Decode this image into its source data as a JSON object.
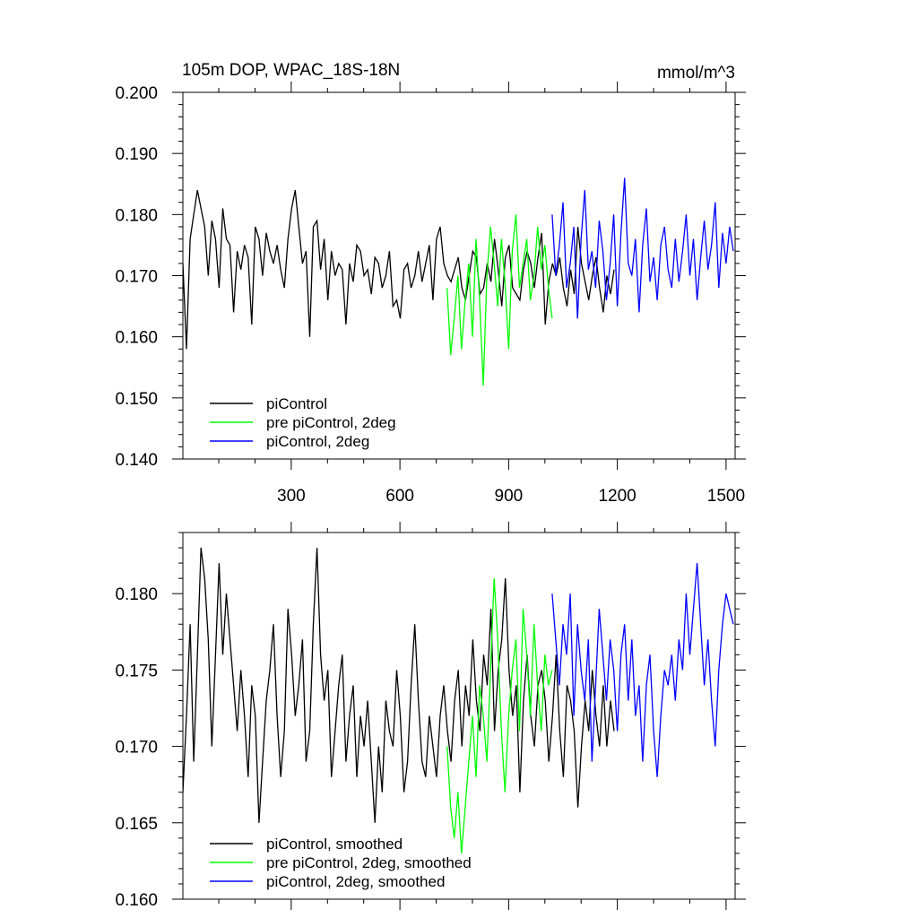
{
  "chart_data": [
    {
      "type": "line",
      "title": "105m DOP, WPAC_18S-18N",
      "units": "mmol/m^3",
      "xlim": [
        1,
        1525
      ],
      "ylim": [
        0.14,
        0.2
      ],
      "x_ticks": [
        300,
        600,
        900,
        1200,
        1500
      ],
      "x_tick_labels": [
        "300",
        "600",
        "900",
        "1200",
        "1500"
      ],
      "y_ticks": [
        0.14,
        0.15,
        0.16,
        0.17,
        0.18,
        0.19,
        0.2
      ],
      "y_tick_labels": [
        "0.140",
        "0.150",
        "0.160",
        "0.170",
        "0.180",
        "0.190",
        "0.200"
      ],
      "legend": {
        "placement": "bottom-left",
        "entries": [
          {
            "label": "piControl",
            "color": "#000000"
          },
          {
            "label": "pre piControl, 2deg",
            "color": "#00ff00"
          },
          {
            "label": "piControl, 2deg",
            "color": "#0000ff"
          }
        ]
      },
      "series": [
        {
          "color": "#000000",
          "x_start": 1,
          "step": 10,
          "values": [
            0.172,
            0.158,
            0.176,
            0.18,
            0.184,
            0.181,
            0.178,
            0.17,
            0.179,
            0.176,
            0.168,
            0.181,
            0.176,
            0.175,
            0.164,
            0.174,
            0.171,
            0.175,
            0.173,
            0.162,
            0.178,
            0.176,
            0.17,
            0.177,
            0.174,
            0.172,
            0.175,
            0.171,
            0.168,
            0.176,
            0.181,
            0.184,
            0.178,
            0.172,
            0.174,
            0.16,
            0.178,
            0.179,
            0.171,
            0.176,
            0.166,
            0.174,
            0.17,
            0.172,
            0.171,
            0.162,
            0.172,
            0.169,
            0.175,
            0.174,
            0.17,
            0.171,
            0.167,
            0.173,
            0.172,
            0.168,
            0.17,
            0.174,
            0.165,
            0.166,
            0.163,
            0.171,
            0.172,
            0.168,
            0.17,
            0.174,
            0.169,
            0.172,
            0.175,
            0.166,
            0.176,
            0.178,
            0.172,
            0.17,
            0.169,
            0.171,
            0.173,
            0.168,
            0.166,
            0.17,
            0.174,
            0.173,
            0.167,
            0.168,
            0.172,
            0.169,
            0.176,
            0.171,
            0.165,
            0.173,
            0.175,
            0.168,
            0.167,
            0.166,
            0.171,
            0.174,
            0.172,
            0.168,
            0.173,
            0.177,
            0.162,
            0.169,
            0.172,
            0.17,
            0.173,
            0.168,
            0.165,
            0.171,
            0.167,
            0.178,
            0.172,
            0.169,
            0.166,
            0.17,
            0.173,
            0.168,
            0.164,
            0.17,
            0.167,
            0.171
          ]
        },
        {
          "color": "#00ff00",
          "x_start": 730,
          "step": 10,
          "values": [
            0.168,
            0.157,
            0.163,
            0.17,
            0.158,
            0.166,
            0.172,
            0.16,
            0.176,
            0.166,
            0.152,
            0.17,
            0.178,
            0.172,
            0.165,
            0.176,
            0.169,
            0.158,
            0.174,
            0.18,
            0.168,
            0.172,
            0.176,
            0.166,
            0.17,
            0.178,
            0.171,
            0.175,
            0.168,
            0.163
          ]
        },
        {
          "color": "#0000ff",
          "x_start": 1020,
          "step": 10,
          "values": [
            0.18,
            0.17,
            0.175,
            0.182,
            0.168,
            0.172,
            0.178,
            0.163,
            0.176,
            0.184,
            0.171,
            0.174,
            0.168,
            0.179,
            0.174,
            0.166,
            0.172,
            0.18,
            0.165,
            0.177,
            0.186,
            0.172,
            0.17,
            0.176,
            0.164,
            0.175,
            0.181,
            0.169,
            0.173,
            0.166,
            0.175,
            0.178,
            0.171,
            0.168,
            0.176,
            0.169,
            0.174,
            0.18,
            0.17,
            0.176,
            0.166,
            0.173,
            0.179,
            0.171,
            0.175,
            0.182,
            0.168,
            0.177,
            0.172,
            0.178,
            0.174
          ]
        }
      ]
    },
    {
      "type": "line",
      "xlim": [
        1,
        1525
      ],
      "ylim": [
        0.16,
        0.184
      ],
      "x_ticks": [
        300,
        600,
        900,
        1200,
        1500
      ],
      "y_ticks": [
        0.16,
        0.165,
        0.17,
        0.175,
        0.18
      ],
      "y_tick_labels": [
        "0.160",
        "0.165",
        "0.170",
        "0.175",
        "0.180"
      ],
      "legend": {
        "placement": "bottom-left",
        "entries": [
          {
            "label": "piControl, smoothed",
            "color": "#000000"
          },
          {
            "label": "pre piControl, 2deg, smoothed",
            "color": "#00ff00"
          },
          {
            "label": "piControl, 2deg, smoothed",
            "color": "#0000ff"
          }
        ]
      },
      "series": [
        {
          "color": "#000000",
          "x_start": 1,
          "step": 10,
          "values": [
            0.167,
            0.172,
            0.178,
            0.169,
            0.176,
            0.183,
            0.181,
            0.177,
            0.17,
            0.176,
            0.182,
            0.176,
            0.18,
            0.177,
            0.174,
            0.171,
            0.175,
            0.172,
            0.168,
            0.174,
            0.172,
            0.165,
            0.169,
            0.173,
            0.175,
            0.178,
            0.172,
            0.168,
            0.171,
            0.179,
            0.176,
            0.172,
            0.174,
            0.177,
            0.169,
            0.171,
            0.178,
            0.183,
            0.176,
            0.173,
            0.175,
            0.168,
            0.171,
            0.174,
            0.176,
            0.169,
            0.172,
            0.174,
            0.168,
            0.172,
            0.17,
            0.173,
            0.169,
            0.165,
            0.17,
            0.167,
            0.173,
            0.171,
            0.17,
            0.175,
            0.172,
            0.167,
            0.169,
            0.174,
            0.178,
            0.173,
            0.169,
            0.168,
            0.172,
            0.17,
            0.168,
            0.172,
            0.174,
            0.171,
            0.169,
            0.173,
            0.175,
            0.17,
            0.174,
            0.172,
            0.177,
            0.173,
            0.171,
            0.176,
            0.174,
            0.179,
            0.171,
            0.175,
            0.177,
            0.181,
            0.175,
            0.172,
            0.174,
            0.167,
            0.173,
            0.176,
            0.172,
            0.17,
            0.174,
            0.175,
            0.173,
            0.169,
            0.172,
            0.176,
            0.171,
            0.168,
            0.174,
            0.173,
            0.171,
            0.166,
            0.17,
            0.173,
            0.171,
            0.175,
            0.172,
            0.17,
            0.174,
            0.17,
            0.173,
            0.171
          ]
        },
        {
          "color": "#00ff00",
          "x_start": 730,
          "step": 10,
          "values": [
            0.17,
            0.166,
            0.164,
            0.167,
            0.163,
            0.166,
            0.169,
            0.172,
            0.168,
            0.174,
            0.172,
            0.169,
            0.175,
            0.181,
            0.177,
            0.171,
            0.167,
            0.172,
            0.175,
            0.177,
            0.171,
            0.179,
            0.176,
            0.172,
            0.178,
            0.174,
            0.171,
            0.176,
            0.174,
            0.175
          ]
        },
        {
          "color": "#0000ff",
          "x_start": 1020,
          "step": 10,
          "values": [
            0.18,
            0.177,
            0.174,
            0.178,
            0.176,
            0.18,
            0.172,
            0.178,
            0.175,
            0.173,
            0.177,
            0.169,
            0.174,
            0.179,
            0.176,
            0.173,
            0.177,
            0.175,
            0.171,
            0.176,
            0.178,
            0.173,
            0.177,
            0.172,
            0.174,
            0.169,
            0.174,
            0.176,
            0.171,
            0.168,
            0.172,
            0.175,
            0.174,
            0.176,
            0.173,
            0.177,
            0.175,
            0.18,
            0.176,
            0.179,
            0.182,
            0.178,
            0.174,
            0.177,
            0.173,
            0.17,
            0.175,
            0.178,
            0.18,
            0.179,
            0.178
          ]
        }
      ]
    }
  ]
}
